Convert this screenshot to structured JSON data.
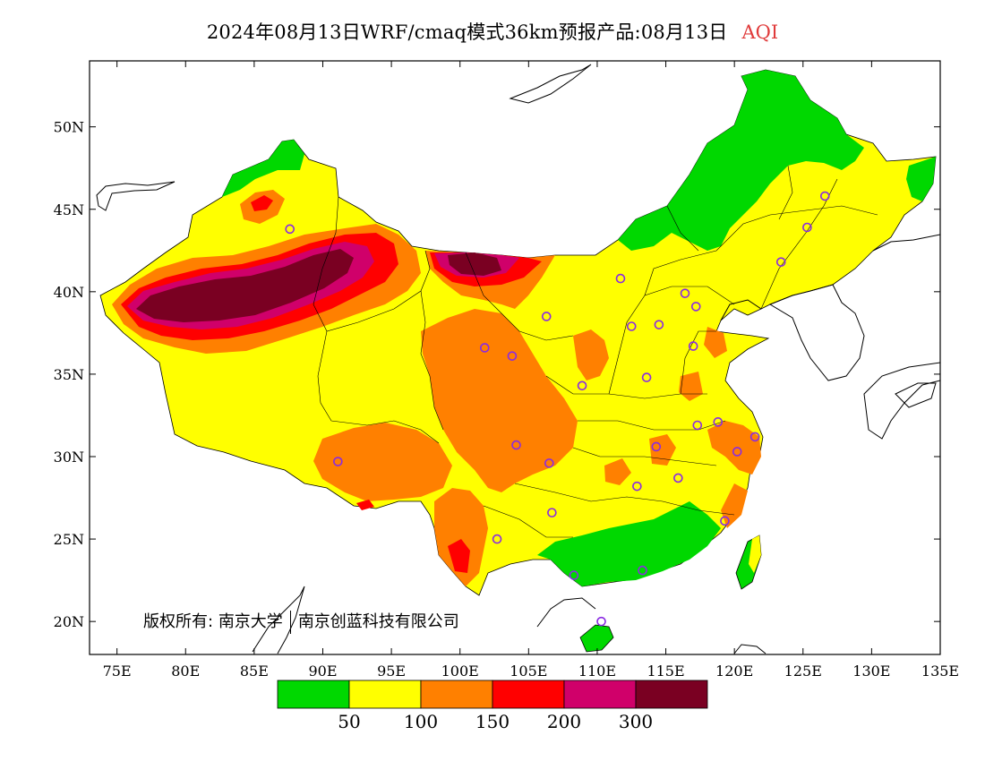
{
  "title": {
    "main": "2024年08月13日WRF/cmaq模式36km预报产品:08月13日",
    "variable": "AQI",
    "variable_color": "#e03a3a"
  },
  "copyright": {
    "prefix": "版权所有:",
    "org1": "南京大学",
    "org2": "南京创蓝科技有限公司"
  },
  "map": {
    "lon_range": [
      73,
      135
    ],
    "lat_range": [
      18,
      54
    ],
    "lon_ticks": [
      "75E",
      "80E",
      "85E",
      "90E",
      "95E",
      "100E",
      "105E",
      "110E",
      "115E",
      "120E",
      "125E",
      "130E",
      "135E"
    ],
    "lat_ticks": [
      "20N",
      "25N",
      "30N",
      "35N",
      "40N",
      "45N",
      "50N"
    ],
    "marker_icon": "circle-icon",
    "marker_color": "#8a2be2"
  },
  "legend": {
    "colors": [
      "#00d800",
      "#ffff00",
      "#ff8000",
      "#ff0000",
      "#d0006a",
      "#7a0022"
    ],
    "labels": [
      "50",
      "100",
      "150",
      "200",
      "300"
    ]
  },
  "cities": [
    {
      "lon": 87.6,
      "lat": 43.8
    },
    {
      "lon": 126.6,
      "lat": 45.8
    },
    {
      "lon": 125.3,
      "lat": 43.9
    },
    {
      "lon": 123.4,
      "lat": 41.8
    },
    {
      "lon": 111.7,
      "lat": 40.8
    },
    {
      "lon": 116.4,
      "lat": 39.9
    },
    {
      "lon": 117.2,
      "lat": 39.1
    },
    {
      "lon": 106.3,
      "lat": 38.5
    },
    {
      "lon": 112.5,
      "lat": 37.9
    },
    {
      "lon": 114.5,
      "lat": 38.0
    },
    {
      "lon": 117.0,
      "lat": 36.7
    },
    {
      "lon": 101.8,
      "lat": 36.6
    },
    {
      "lon": 103.8,
      "lat": 36.1
    },
    {
      "lon": 108.9,
      "lat": 34.3
    },
    {
      "lon": 113.6,
      "lat": 34.8
    },
    {
      "lon": 117.3,
      "lat": 31.9
    },
    {
      "lon": 118.8,
      "lat": 32.1
    },
    {
      "lon": 121.5,
      "lat": 31.2
    },
    {
      "lon": 120.2,
      "lat": 30.3
    },
    {
      "lon": 114.3,
      "lat": 30.6
    },
    {
      "lon": 104.1,
      "lat": 30.7
    },
    {
      "lon": 106.5,
      "lat": 29.6
    },
    {
      "lon": 91.1,
      "lat": 29.7
    },
    {
      "lon": 112.9,
      "lat": 28.2
    },
    {
      "lon": 115.9,
      "lat": 28.7
    },
    {
      "lon": 106.7,
      "lat": 26.6
    },
    {
      "lon": 119.3,
      "lat": 26.1
    },
    {
      "lon": 102.7,
      "lat": 25.0
    },
    {
      "lon": 108.3,
      "lat": 22.8
    },
    {
      "lon": 113.3,
      "lat": 23.1
    },
    {
      "lon": 110.3,
      "lat": 20.0
    }
  ]
}
